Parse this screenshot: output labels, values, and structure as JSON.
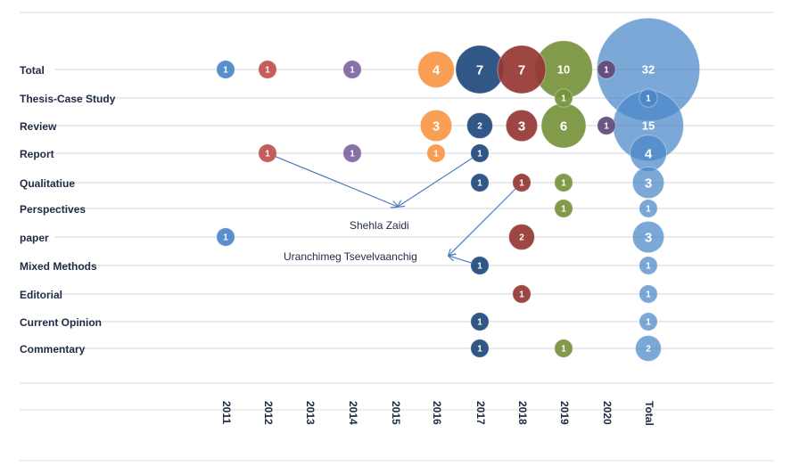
{
  "chart_data": {
    "type": "bubble",
    "rows": [
      "Total",
      "Thesis-Case Study",
      "Review",
      "Report",
      "Qualitatiue",
      "Perspectives",
      "paper",
      "Mixed Methods",
      "Editorial",
      "Current Opinion",
      "Commentary"
    ],
    "columns": [
      "2011",
      "2012",
      "2013",
      "2014",
      "2015",
      "2016",
      "2017",
      "2018",
      "2019",
      "2020",
      "Total"
    ],
    "bubbles": [
      {
        "row": "Total",
        "col": "2011",
        "value": 1
      },
      {
        "row": "Total",
        "col": "2012",
        "value": 1
      },
      {
        "row": "Total",
        "col": "2014",
        "value": 1
      },
      {
        "row": "Total",
        "col": "2016",
        "value": 4
      },
      {
        "row": "Total",
        "col": "2017",
        "value": 7
      },
      {
        "row": "Total",
        "col": "2018",
        "value": 7
      },
      {
        "row": "Total",
        "col": "2019",
        "value": 10
      },
      {
        "row": "Total",
        "col": "2020",
        "value": 1
      },
      {
        "row": "Total",
        "col": "Total",
        "value": 32
      },
      {
        "row": "Thesis-Case Study",
        "col": "2019",
        "value": 1
      },
      {
        "row": "Thesis-Case Study",
        "col": "Total",
        "value": 1
      },
      {
        "row": "Review",
        "col": "2016",
        "value": 3
      },
      {
        "row": "Review",
        "col": "2017",
        "value": 2
      },
      {
        "row": "Review",
        "col": "2018",
        "value": 3
      },
      {
        "row": "Review",
        "col": "2019",
        "value": 6
      },
      {
        "row": "Review",
        "col": "2020",
        "value": 1
      },
      {
        "row": "Review",
        "col": "Total",
        "value": 15
      },
      {
        "row": "Report",
        "col": "2012",
        "value": 1
      },
      {
        "row": "Report",
        "col": "2014",
        "value": 1
      },
      {
        "row": "Report",
        "col": "2016",
        "value": 1
      },
      {
        "row": "Report",
        "col": "2017",
        "value": 1
      },
      {
        "row": "Report",
        "col": "Total",
        "value": 4
      },
      {
        "row": "Qualitatiue",
        "col": "2017",
        "value": 1
      },
      {
        "row": "Qualitatiue",
        "col": "2018",
        "value": 1
      },
      {
        "row": "Qualitatiue",
        "col": "2019",
        "value": 1
      },
      {
        "row": "Qualitatiue",
        "col": "Total",
        "value": 3
      },
      {
        "row": "Perspectives",
        "col": "2019",
        "value": 1
      },
      {
        "row": "Perspectives",
        "col": "Total",
        "value": 1
      },
      {
        "row": "paper",
        "col": "2011",
        "value": 1
      },
      {
        "row": "paper",
        "col": "2018",
        "value": 2
      },
      {
        "row": "paper",
        "col": "Total",
        "value": 3
      },
      {
        "row": "Mixed Methods",
        "col": "2017",
        "value": 1
      },
      {
        "row": "Mixed Methods",
        "col": "Total",
        "value": 1
      },
      {
        "row": "Editorial",
        "col": "2018",
        "value": 1
      },
      {
        "row": "Editorial",
        "col": "Total",
        "value": 1
      },
      {
        "row": "Current Opinion",
        "col": "2017",
        "value": 1
      },
      {
        "row": "Current Opinion",
        "col": "Total",
        "value": 1
      },
      {
        "row": "Commentary",
        "col": "2017",
        "value": 1
      },
      {
        "row": "Commentary",
        "col": "2019",
        "value": 1
      },
      {
        "row": "Commentary",
        "col": "Total",
        "value": 2
      }
    ],
    "column_colors": {
      "2011": "#4a86c8",
      "2012": "#c0504d",
      "2013": "#8064a2",
      "2014": "#8064a2",
      "2015": "#4a86c8",
      "2016": "#f79646",
      "2017": "#1f497d",
      "2018": "#953735",
      "2019": "#77933c",
      "2020": "#5f497a",
      "Total": "#4a86c8"
    },
    "annotations": [
      {
        "text": "Shehla Zaidi",
        "points_to": [
          {
            "row": "Report",
            "col": "2012"
          },
          {
            "row": "Report",
            "col": "2017"
          }
        ]
      },
      {
        "text": "Uranchimeg Tsevelvaanchig",
        "points_to": [
          {
            "row": "Qualitatiue",
            "col": "2018"
          },
          {
            "row": "Mixed Methods",
            "col": "2017"
          }
        ]
      }
    ],
    "title": "",
    "xlabel": "",
    "ylabel": "",
    "grid": true,
    "legend": "none"
  }
}
